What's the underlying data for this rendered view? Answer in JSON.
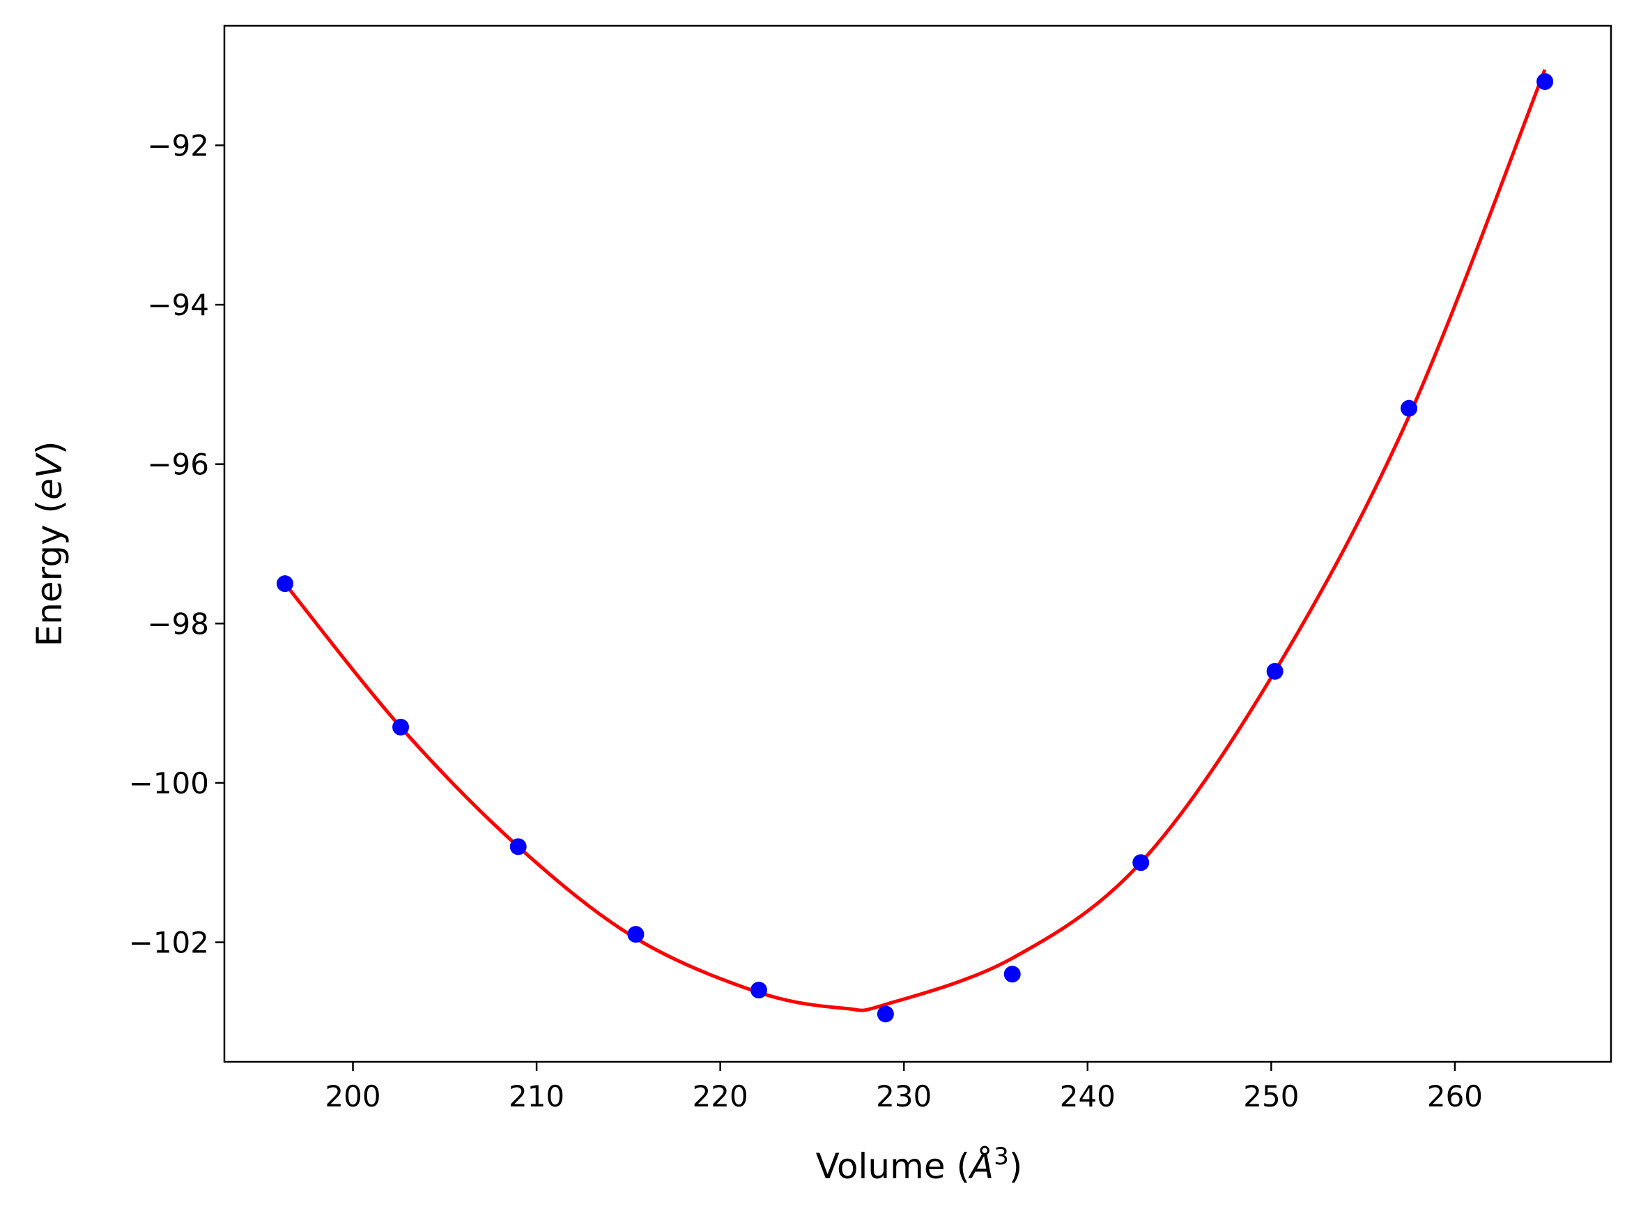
{
  "chart_data": {
    "type": "scatter",
    "xlabel": "Volume (Å³)",
    "xlabel_parts": {
      "prefix": "Volume (",
      "italic": "Å",
      "sup": "3",
      "suffix": ")"
    },
    "ylabel": "Energy (eV)",
    "ylabel_parts": {
      "prefix": "Energy (",
      "italic": "eV",
      "suffix": ")"
    },
    "xlim": [
      193,
      268.5
    ],
    "ylim": [
      -103.5,
      -90.5
    ],
    "x_ticks": [
      200,
      210,
      220,
      230,
      240,
      250,
      260
    ],
    "x_tick_labels": [
      "200",
      "210",
      "220",
      "230",
      "240",
      "250",
      "260"
    ],
    "y_ticks": [
      -92,
      -94,
      -96,
      -98,
      -100,
      -102
    ],
    "y_tick_labels": [
      "−92",
      "−94",
      "−96",
      "−98",
      "−100",
      "−102"
    ],
    "grid": false,
    "series": [
      {
        "kind": "points",
        "color": "#0000ff",
        "x": [
          196.3,
          202.6,
          209.0,
          215.4,
          222.1,
          229.0,
          235.9,
          242.9,
          250.2,
          257.5,
          264.9
        ],
        "y": [
          -97.5,
          -99.3,
          -100.8,
          -101.9,
          -102.6,
          -102.9,
          -102.4,
          -101.0,
          -98.6,
          -95.3,
          -91.2
        ]
      },
      {
        "kind": "fit-curve",
        "color": "#ff0000",
        "x": [
          196.3,
          202.6,
          209.0,
          215.4,
          222.1,
          226.8,
          229.0,
          235.9,
          242.9,
          250.2,
          257.5,
          264.9
        ],
        "y": [
          -97.5,
          -99.3,
          -100.8,
          -101.95,
          -102.63,
          -102.83,
          -102.78,
          -102.2,
          -101.0,
          -98.6,
          -95.4,
          -91.05
        ]
      }
    ]
  }
}
